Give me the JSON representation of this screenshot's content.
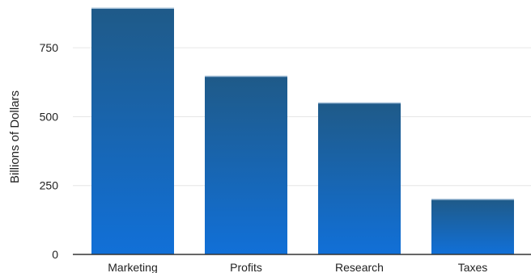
{
  "chart_data": {
    "type": "bar",
    "categories": [
      "Marketing",
      "Profits",
      "Research",
      "Taxes"
    ],
    "values": [
      895,
      648,
      551,
      201
    ],
    "title": "",
    "xlabel": "",
    "ylabel": "Billions of Dollars",
    "ylim": [
      0,
      900
    ],
    "yticks": [
      0,
      250,
      500,
      750
    ],
    "grid": true,
    "legend": "none",
    "colors": {
      "bar_top": "#1f5a88",
      "bar_bottom": "#1170d8",
      "gridline": "#e6e6e6",
      "axis": "#333333"
    }
  }
}
